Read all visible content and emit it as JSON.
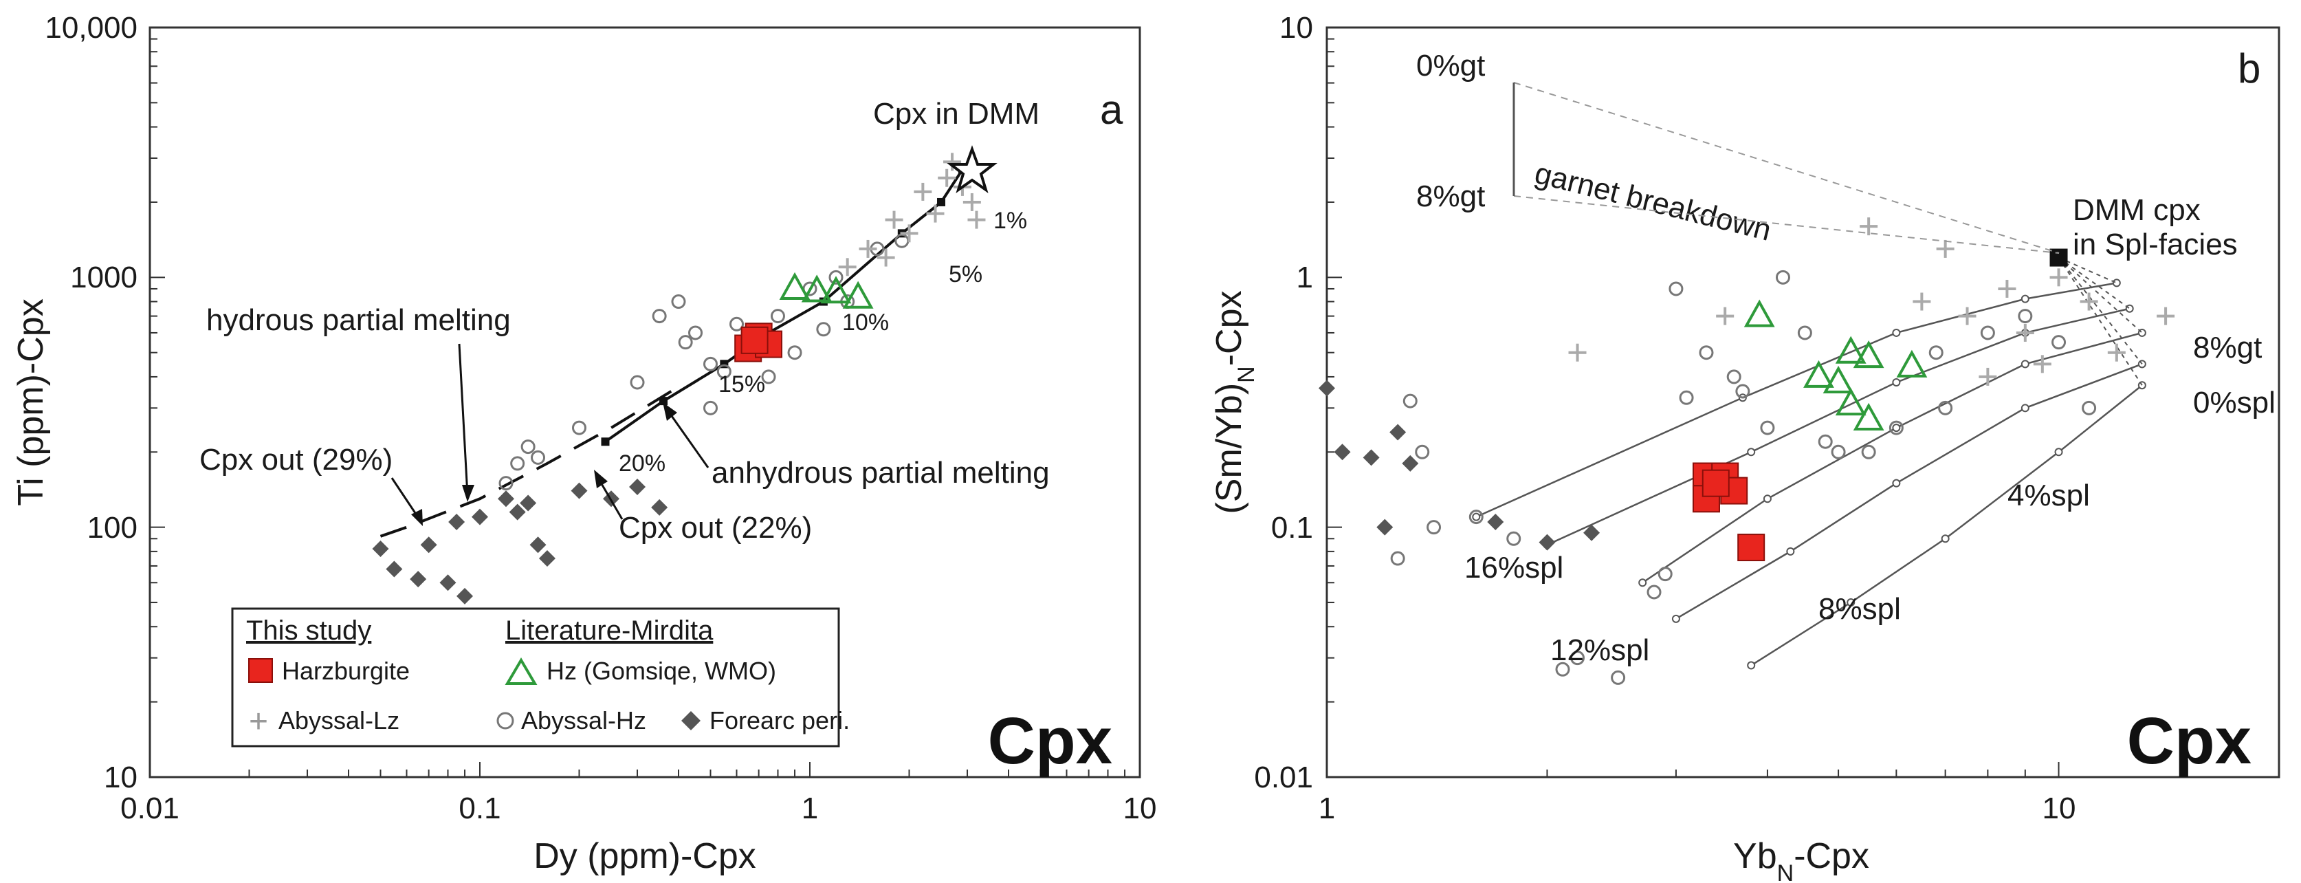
{
  "chart_data": [
    {
      "type": "scatter",
      "panel_label": "a",
      "mineral_label": "Cpx",
      "xlabel": "Dy (ppm)-Cpx",
      "ylabel": "Ti (ppm)-Cpx",
      "xscale": "log",
      "yscale": "log",
      "xlim": [
        0.01,
        10
      ],
      "ylim": [
        10,
        10000
      ],
      "xticks": [
        "0.01",
        "0.1",
        "1",
        "10"
      ],
      "yticks": [
        "10",
        "100",
        "1000",
        "10,000"
      ],
      "legend": {
        "placement": "bottom-left",
        "heading_study": "This study",
        "heading_lit": "Literature-Mirdita",
        "entries": [
          "Harzburgite",
          "Hz (Gomsiqe, WMO)",
          "Abyssal-Lz",
          "Abyssal-Hz",
          "Forearc peri."
        ]
      },
      "annotations": {
        "dmm": "Cpx in DMM",
        "hydrous": "hydrous partial melting",
        "anhydrous": "anhydrous partial melting",
        "cpx29": "Cpx out (29%)",
        "cpx22": "Cpx out (22%)",
        "p1": "1%",
        "p5": "5%",
        "p10": "10%",
        "p15": "15%",
        "p20": "20%"
      },
      "anhydrous_trend": [
        [
          2.9,
          2700
        ],
        [
          2.5,
          2000
        ],
        [
          1.9,
          1500
        ],
        [
          1.1,
          800
        ],
        [
          0.75,
          600
        ],
        [
          0.55,
          450
        ],
        [
          0.36,
          320
        ],
        [
          0.24,
          220
        ]
      ],
      "hydrous_trend": [
        [
          0.38,
          350
        ],
        [
          0.25,
          250
        ],
        [
          0.16,
          180
        ],
        [
          0.1,
          130
        ],
        [
          0.06,
          100
        ],
        [
          0.05,
          92
        ]
      ],
      "series": [
        {
          "name": "Harzburgite",
          "points": [
            [
              0.7,
              580
            ],
            [
              0.65,
              520
            ],
            [
              0.75,
              540
            ],
            [
              0.68,
              560
            ]
          ]
        },
        {
          "name": "Hz (Gomsiqe, WMO)",
          "points": [
            [
              0.9,
              900
            ],
            [
              1.2,
              870
            ],
            [
              1.4,
              830
            ],
            [
              1.05,
              880
            ]
          ]
        },
        {
          "name": "Abyssal-Lz",
          "points": [
            [
              2.2,
              2200
            ],
            [
              2.6,
              2500
            ],
            [
              1.8,
              1700
            ],
            [
              3.1,
              2000
            ],
            [
              1.5,
              1300
            ],
            [
              2.4,
              1800
            ],
            [
              1.3,
              1100
            ],
            [
              2.0,
              1500
            ],
            [
              2.7,
              2900
            ],
            [
              1.7,
              1200
            ],
            [
              3.2,
              1700
            ],
            [
              2.9,
              2300
            ]
          ]
        },
        {
          "name": "Abyssal-Hz",
          "points": [
            [
              0.35,
              700
            ],
            [
              0.4,
              800
            ],
            [
              0.5,
              450
            ],
            [
              0.6,
              650
            ],
            [
              0.55,
              420
            ],
            [
              0.8,
              700
            ],
            [
              1.0,
              900
            ],
            [
              1.2,
              1000
            ],
            [
              1.6,
              1300
            ],
            [
              0.3,
              380
            ],
            [
              0.45,
              600
            ],
            [
              0.9,
              500
            ],
            [
              1.3,
              800
            ],
            [
              1.9,
              1400
            ],
            [
              0.5,
              300
            ],
            [
              0.42,
              550
            ],
            [
              0.75,
              400
            ],
            [
              1.1,
              620
            ],
            [
              0.13,
              180
            ],
            [
              0.14,
              210
            ],
            [
              0.15,
              190
            ],
            [
              0.12,
              150
            ],
            [
              0.2,
              250
            ]
          ]
        },
        {
          "name": "Forearc peri.",
          "points": [
            [
              0.05,
              82
            ],
            [
              0.055,
              68
            ],
            [
              0.065,
              62
            ],
            [
              0.08,
              60
            ],
            [
              0.09,
              53
            ],
            [
              0.085,
              105
            ],
            [
              0.1,
              110
            ],
            [
              0.12,
              130
            ],
            [
              0.13,
              115
            ],
            [
              0.14,
              125
            ],
            [
              0.15,
              85
            ],
            [
              0.16,
              75
            ],
            [
              0.2,
              140
            ],
            [
              0.25,
              130
            ],
            [
              0.3,
              145
            ],
            [
              0.35,
              120
            ],
            [
              0.07,
              85
            ]
          ]
        }
      ]
    },
    {
      "type": "scatter",
      "panel_label": "b",
      "mineral_label": "Cpx",
      "xlabel": "YbN-Cpx",
      "ylabel": "(Sm/Yb)N-Cpx",
      "xscale": "log",
      "yscale": "log",
      "xlim": [
        1,
        20
      ],
      "ylim": [
        0.01,
        10
      ],
      "xticks": [
        "1",
        "10"
      ],
      "yticks": [
        "0.01",
        "0.1",
        "1",
        "10"
      ],
      "annotations": {
        "gt0": "0%gt",
        "gt8": "8%gt",
        "garnet": "garnet breakdown",
        "dmm1": "DMM cpx",
        "dmm2": "in Spl-facies",
        "gt8r": "8%gt",
        "spl0": "0%spl",
        "spl4": "4%spl",
        "spl8": "8%spl",
        "spl12": "12%spl",
        "spl16": "16%spl"
      },
      "model_curves": [
        {
          "label": "0%spl",
          "points": [
            [
              13,
              0.37
            ],
            [
              10,
              0.2
            ],
            [
              7,
              0.09
            ],
            [
              5.2,
              0.05
            ],
            [
              3.8,
              0.028
            ]
          ]
        },
        {
          "label": "4%spl",
          "points": [
            [
              13,
              0.45
            ],
            [
              9,
              0.3
            ],
            [
              6,
              0.15
            ],
            [
              4.3,
              0.08
            ],
            [
              3,
              0.043
            ]
          ]
        },
        {
          "label": "8%spl",
          "points": [
            [
              13,
              0.6
            ],
            [
              9,
              0.45
            ],
            [
              6,
              0.25
            ],
            [
              4,
              0.13
            ],
            [
              2.7,
              0.06
            ]
          ]
        },
        {
          "label": "12%spl",
          "points": [
            [
              12.5,
              0.75
            ],
            [
              9,
              0.6
            ],
            [
              6,
              0.38
            ],
            [
              3.8,
              0.2
            ],
            [
              2,
              0.085
            ]
          ]
        },
        {
          "label": "16%spl",
          "points": [
            [
              12,
              0.95
            ],
            [
              9,
              0.82
            ],
            [
              6,
              0.6
            ],
            [
              3.7,
              0.33
            ],
            [
              1.6,
              0.11
            ]
          ]
        }
      ],
      "dmm_point": [
        10,
        1.2
      ],
      "series": [
        {
          "name": "Harzburgite",
          "points": [
            [
              3.3,
              0.16
            ],
            [
              3.5,
              0.16
            ],
            [
              3.6,
              0.14
            ],
            [
              3.3,
              0.13
            ],
            [
              3.4,
              0.15
            ],
            [
              3.8,
              0.083
            ]
          ]
        },
        {
          "name": "Hz (Gomsiqe, WMO)",
          "points": [
            [
              3.9,
              0.7
            ],
            [
              4.7,
              0.4
            ],
            [
              5.2,
              0.5
            ],
            [
              5.5,
              0.48
            ],
            [
              6.3,
              0.44
            ],
            [
              5.2,
              0.31
            ],
            [
              5.5,
              0.27
            ],
            [
              5.0,
              0.38
            ]
          ]
        },
        {
          "name": "Abyssal-Lz",
          "points": [
            [
              2.2,
              0.5
            ],
            [
              7,
              1.3
            ],
            [
              8.5,
              0.9
            ],
            [
              9,
              0.6
            ],
            [
              10,
              1.0
            ],
            [
              12,
              0.5
            ],
            [
              14,
              0.7
            ],
            [
              8,
              0.4
            ],
            [
              11,
              0.8
            ],
            [
              7.5,
              0.7
            ],
            [
              5.5,
              1.6
            ],
            [
              3.5,
              0.7
            ],
            [
              6.5,
              0.8
            ],
            [
              9.5,
              0.45
            ]
          ]
        },
        {
          "name": "Abyssal-Hz",
          "points": [
            [
              1.6,
              0.11
            ],
            [
              1.8,
              0.09
            ],
            [
              2.2,
              0.03
            ],
            [
              2.1,
              0.027
            ],
            [
              2.5,
              0.025
            ],
            [
              2.9,
              0.065
            ],
            [
              2.8,
              0.055
            ],
            [
              3,
              0.9
            ],
            [
              3.3,
              0.5
            ],
            [
              4.2,
              1.0
            ],
            [
              4.5,
              0.6
            ],
            [
              5,
              0.2
            ],
            [
              6,
              0.25
            ],
            [
              7,
              0.3
            ],
            [
              8,
              0.6
            ],
            [
              9,
              0.7
            ],
            [
              10,
              0.55
            ],
            [
              11,
              0.3
            ],
            [
              4,
              0.25
            ],
            [
              3.1,
              0.33
            ],
            [
              3.7,
              0.35
            ],
            [
              1.3,
              0.32
            ],
            [
              1.4,
              0.1
            ],
            [
              1.35,
              0.2
            ],
            [
              1.25,
              0.075
            ],
            [
              5.5,
              0.2
            ],
            [
              6.8,
              0.5
            ],
            [
              4.8,
              0.22
            ],
            [
              3.6,
              0.4
            ]
          ]
        },
        {
          "name": "Forearc peri.",
          "points": [
            [
              1,
              0.36
            ],
            [
              1.05,
              0.2
            ],
            [
              1.15,
              0.19
            ],
            [
              1.2,
              0.1
            ],
            [
              1.25,
              0.24
            ],
            [
              1.3,
              0.18
            ],
            [
              1.7,
              0.105
            ],
            [
              2,
              0.087
            ],
            [
              2.3,
              0.095
            ]
          ]
        }
      ]
    }
  ]
}
